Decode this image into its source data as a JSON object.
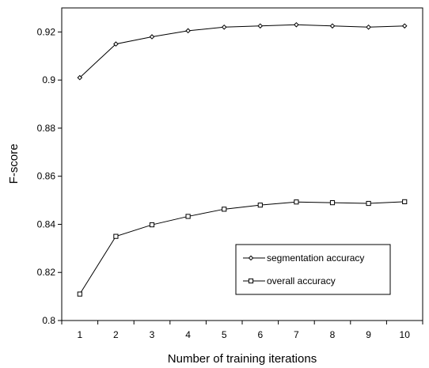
{
  "chart_data": {
    "type": "line",
    "title": "",
    "xlabel": "Number of training iterations",
    "ylabel": "F-score",
    "x": [
      1,
      2,
      3,
      4,
      5,
      6,
      7,
      8,
      9,
      10
    ],
    "xlim": [
      0.5,
      10.5
    ],
    "ylim": [
      0.8,
      0.93
    ],
    "yticks": [
      0.8,
      0.82,
      0.84,
      0.86,
      0.88,
      0.9,
      0.92
    ],
    "ytick_labels": [
      "0.8",
      "0.82",
      "0.84",
      "0.86",
      "0.88",
      "0.9",
      "0.92"
    ],
    "xtick_labels": [
      "1",
      "2",
      "3",
      "4",
      "5",
      "6",
      "7",
      "8",
      "9",
      "10"
    ],
    "grid": false,
    "legend_position": "lower-right",
    "series": [
      {
        "name": "segmentation accuracy",
        "marker": "diamond",
        "color": "#000000",
        "values": [
          0.901,
          0.915,
          0.918,
          0.9205,
          0.922,
          0.9225,
          0.923,
          0.9225,
          0.922,
          0.9225
        ]
      },
      {
        "name": "overall accuracy",
        "marker": "square",
        "color": "#000000",
        "values": [
          0.811,
          0.835,
          0.8398,
          0.8433,
          0.8463,
          0.848,
          0.8493,
          0.849,
          0.8487,
          0.8494
        ]
      }
    ]
  }
}
